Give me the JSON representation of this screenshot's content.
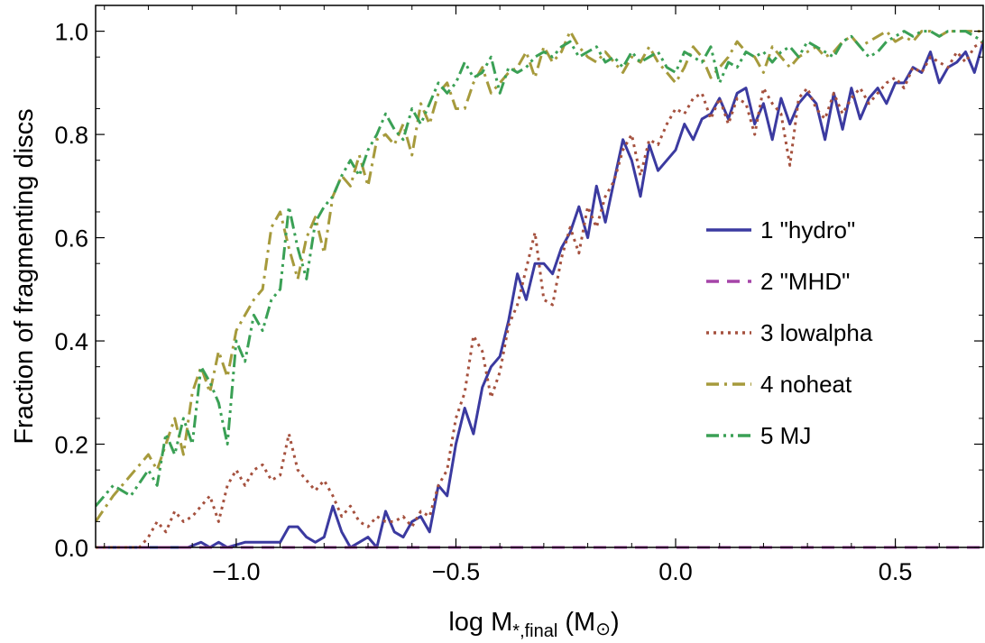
{
  "chart_data": {
    "type": "line",
    "title": "",
    "xlabel": "log M",
    "xlabel_sub": "*,final",
    "xlabel_unit_open": " (M",
    "xlabel_unit_symbol": "⊙",
    "xlabel_unit_close": ")",
    "ylabel": "Fraction of fragmenting discs",
    "xlim": [
      -1.32,
      0.7
    ],
    "ylim": [
      0.0,
      1.05
    ],
    "xticks": [
      -1.0,
      -0.5,
      0.0,
      0.5
    ],
    "xtick_labels": [
      "−1.0",
      "−0.5",
      "0.0",
      "0.5"
    ],
    "yticks": [
      0.0,
      0.2,
      0.4,
      0.6,
      0.8,
      1.0
    ],
    "ytick_labels": [
      "0.0",
      "0.2",
      "0.4",
      "0.6",
      "0.8",
      "1.0"
    ],
    "grid": false,
    "legend_position": "right",
    "series": [
      {
        "name": "1 \"hydro\"",
        "color": "#3b3aa0",
        "style": "solid",
        "x": [
          -1.32,
          -1.2,
          -1.15,
          -1.11,
          -1.08,
          -1.06,
          -1.04,
          -1.02,
          -0.98,
          -0.94,
          -0.9,
          -0.88,
          -0.86,
          -0.84,
          -0.82,
          -0.8,
          -0.78,
          -0.76,
          -0.74,
          -0.72,
          -0.7,
          -0.68,
          -0.66,
          -0.64,
          -0.62,
          -0.6,
          -0.58,
          -0.56,
          -0.54,
          -0.52,
          -0.5,
          -0.48,
          -0.46,
          -0.44,
          -0.42,
          -0.4,
          -0.38,
          -0.36,
          -0.34,
          -0.32,
          -0.3,
          -0.28,
          -0.26,
          -0.24,
          -0.22,
          -0.2,
          -0.18,
          -0.16,
          -0.14,
          -0.12,
          -0.1,
          -0.08,
          -0.06,
          -0.04,
          -0.02,
          0.0,
          0.02,
          0.04,
          0.06,
          0.08,
          0.1,
          0.12,
          0.14,
          0.16,
          0.18,
          0.2,
          0.22,
          0.24,
          0.26,
          0.28,
          0.3,
          0.32,
          0.34,
          0.36,
          0.38,
          0.4,
          0.42,
          0.44,
          0.46,
          0.48,
          0.5,
          0.52,
          0.54,
          0.56,
          0.58,
          0.6,
          0.62,
          0.64,
          0.66,
          0.68,
          0.7
        ],
        "y": [
          0.0,
          0.0,
          0.0,
          0.0,
          0.01,
          0.0,
          0.01,
          0.0,
          0.01,
          0.01,
          0.01,
          0.04,
          0.04,
          0.02,
          0.01,
          0.02,
          0.08,
          0.03,
          0.0,
          0.01,
          0.02,
          0.0,
          0.07,
          0.03,
          0.02,
          0.05,
          0.06,
          0.03,
          0.12,
          0.1,
          0.2,
          0.27,
          0.22,
          0.31,
          0.35,
          0.37,
          0.44,
          0.53,
          0.48,
          0.55,
          0.55,
          0.53,
          0.58,
          0.61,
          0.66,
          0.6,
          0.7,
          0.63,
          0.71,
          0.79,
          0.75,
          0.68,
          0.78,
          0.73,
          0.75,
          0.77,
          0.82,
          0.79,
          0.83,
          0.84,
          0.87,
          0.83,
          0.88,
          0.89,
          0.82,
          0.86,
          0.79,
          0.87,
          0.82,
          0.86,
          0.88,
          0.86,
          0.79,
          0.88,
          0.81,
          0.89,
          0.83,
          0.87,
          0.89,
          0.86,
          0.9,
          0.9,
          0.93,
          0.92,
          0.96,
          0.9,
          0.93,
          0.94,
          0.96,
          0.92,
          0.98
        ]
      },
      {
        "name": "2 \"MHD\"",
        "color": "#a544a8",
        "style": "dashed",
        "x": [
          -1.32,
          0.7
        ],
        "y": [
          0.0,
          0.0
        ]
      },
      {
        "name": "3 lowalpha",
        "color": "#a5513e",
        "style": "dotted",
        "x": [
          -1.32,
          -1.26,
          -1.22,
          -1.2,
          -1.18,
          -1.16,
          -1.14,
          -1.12,
          -1.1,
          -1.08,
          -1.06,
          -1.04,
          -1.02,
          -1.0,
          -0.98,
          -0.96,
          -0.94,
          -0.92,
          -0.9,
          -0.88,
          -0.86,
          -0.84,
          -0.82,
          -0.8,
          -0.78,
          -0.76,
          -0.74,
          -0.72,
          -0.7,
          -0.68,
          -0.66,
          -0.64,
          -0.62,
          -0.6,
          -0.58,
          -0.56,
          -0.54,
          -0.52,
          -0.5,
          -0.48,
          -0.46,
          -0.44,
          -0.42,
          -0.4,
          -0.38,
          -0.36,
          -0.34,
          -0.32,
          -0.3,
          -0.28,
          -0.26,
          -0.24,
          -0.22,
          -0.2,
          -0.18,
          -0.16,
          -0.14,
          -0.12,
          -0.1,
          -0.08,
          -0.06,
          -0.04,
          -0.02,
          0.0,
          0.02,
          0.04,
          0.06,
          0.08,
          0.1,
          0.12,
          0.14,
          0.16,
          0.18,
          0.2,
          0.22,
          0.24,
          0.26,
          0.28,
          0.3,
          0.32,
          0.34,
          0.36,
          0.38,
          0.4,
          0.42,
          0.44,
          0.46,
          0.48,
          0.5,
          0.52,
          0.54,
          0.56,
          0.58,
          0.6,
          0.62,
          0.64,
          0.66,
          0.68,
          0.7
        ],
        "y": [
          0.0,
          0.0,
          0.0,
          0.02,
          0.05,
          0.03,
          0.07,
          0.05,
          0.06,
          0.08,
          0.1,
          0.05,
          0.12,
          0.15,
          0.12,
          0.15,
          0.16,
          0.13,
          0.14,
          0.22,
          0.15,
          0.13,
          0.11,
          0.13,
          0.1,
          0.06,
          0.08,
          0.05,
          0.04,
          0.06,
          0.05,
          0.05,
          0.06,
          0.04,
          0.07,
          0.06,
          0.12,
          0.15,
          0.25,
          0.3,
          0.41,
          0.38,
          0.29,
          0.34,
          0.43,
          0.47,
          0.54,
          0.61,
          0.48,
          0.47,
          0.56,
          0.62,
          0.57,
          0.66,
          0.62,
          0.68,
          0.71,
          0.77,
          0.8,
          0.72,
          0.79,
          0.78,
          0.82,
          0.85,
          0.84,
          0.87,
          0.88,
          0.83,
          0.87,
          0.82,
          0.87,
          0.86,
          0.8,
          0.89,
          0.86,
          0.84,
          0.74,
          0.87,
          0.89,
          0.85,
          0.83,
          0.88,
          0.84,
          0.87,
          0.89,
          0.86,
          0.88,
          0.9,
          0.91,
          0.89,
          0.93,
          0.92,
          0.95,
          0.94,
          0.93,
          0.96,
          0.94,
          0.97,
          0.98
        ]
      },
      {
        "name": "4 noheat",
        "color": "#a69a3c",
        "style": "dashdot",
        "x": [
          -1.32,
          -1.28,
          -1.24,
          -1.2,
          -1.18,
          -1.16,
          -1.14,
          -1.12,
          -1.1,
          -1.08,
          -1.06,
          -1.04,
          -1.02,
          -1.0,
          -0.98,
          -0.96,
          -0.94,
          -0.92,
          -0.9,
          -0.88,
          -0.86,
          -0.84,
          -0.82,
          -0.8,
          -0.78,
          -0.76,
          -0.74,
          -0.72,
          -0.7,
          -0.68,
          -0.66,
          -0.64,
          -0.62,
          -0.6,
          -0.58,
          -0.56,
          -0.54,
          -0.52,
          -0.5,
          -0.48,
          -0.46,
          -0.44,
          -0.42,
          -0.4,
          -0.38,
          -0.36,
          -0.34,
          -0.32,
          -0.3,
          -0.28,
          -0.26,
          -0.24,
          -0.22,
          -0.2,
          -0.18,
          -0.16,
          -0.14,
          -0.12,
          -0.1,
          -0.08,
          -0.06,
          -0.04,
          -0.02,
          0.0,
          0.02,
          0.04,
          0.06,
          0.08,
          0.1,
          0.12,
          0.14,
          0.16,
          0.18,
          0.2,
          0.22,
          0.24,
          0.26,
          0.28,
          0.3,
          0.32,
          0.34,
          0.36,
          0.38,
          0.4,
          0.42,
          0.44,
          0.46,
          0.48,
          0.5,
          0.52,
          0.54,
          0.56,
          0.58,
          0.6,
          0.62,
          0.64,
          0.66,
          0.68,
          0.7
        ],
        "y": [
          0.05,
          0.1,
          0.14,
          0.18,
          0.15,
          0.2,
          0.25,
          0.18,
          0.3,
          0.35,
          0.3,
          0.38,
          0.33,
          0.42,
          0.45,
          0.48,
          0.5,
          0.62,
          0.65,
          0.58,
          0.52,
          0.6,
          0.64,
          0.57,
          0.68,
          0.72,
          0.7,
          0.76,
          0.7,
          0.79,
          0.8,
          0.78,
          0.82,
          0.76,
          0.86,
          0.82,
          0.88,
          0.9,
          0.85,
          0.85,
          0.9,
          0.93,
          0.88,
          0.9,
          0.92,
          0.93,
          0.96,
          0.91,
          0.97,
          0.94,
          0.96,
          1.0,
          0.97,
          0.95,
          0.94,
          0.96,
          0.94,
          0.92,
          0.95,
          0.94,
          0.97,
          0.94,
          0.92,
          0.9,
          0.93,
          0.97,
          0.95,
          0.91,
          0.93,
          0.95,
          0.98,
          0.96,
          0.95,
          0.92,
          0.97,
          0.95,
          0.93,
          0.95,
          0.96,
          0.97,
          0.95,
          0.96,
          0.98,
          0.99,
          0.97,
          0.98,
          0.99,
          1.0,
          0.98,
          0.99,
          0.98,
          1.0,
          1.0,
          0.99,
          1.0,
          1.0,
          1.0,
          1.0,
          1.0
        ]
      },
      {
        "name": "5 MJ",
        "color": "#3aa055",
        "style": "dashdotdot",
        "x": [
          -1.32,
          -1.28,
          -1.24,
          -1.2,
          -1.18,
          -1.16,
          -1.14,
          -1.12,
          -1.1,
          -1.08,
          -1.06,
          -1.04,
          -1.02,
          -1.0,
          -0.98,
          -0.96,
          -0.94,
          -0.92,
          -0.9,
          -0.88,
          -0.86,
          -0.84,
          -0.82,
          -0.8,
          -0.78,
          -0.76,
          -0.74,
          -0.72,
          -0.7,
          -0.68,
          -0.66,
          -0.64,
          -0.62,
          -0.6,
          -0.58,
          -0.56,
          -0.54,
          -0.52,
          -0.5,
          -0.48,
          -0.46,
          -0.44,
          -0.42,
          -0.4,
          -0.38,
          -0.36,
          -0.34,
          -0.32,
          -0.3,
          -0.28,
          -0.26,
          -0.24,
          -0.22,
          -0.2,
          -0.18,
          -0.16,
          -0.14,
          -0.12,
          -0.1,
          -0.08,
          -0.06,
          -0.04,
          -0.02,
          0.0,
          0.02,
          0.04,
          0.06,
          0.08,
          0.1,
          0.12,
          0.14,
          0.16,
          0.18,
          0.2,
          0.22,
          0.24,
          0.26,
          0.28,
          0.3,
          0.32,
          0.34,
          0.36,
          0.38,
          0.4,
          0.42,
          0.44,
          0.46,
          0.48,
          0.5,
          0.52,
          0.54,
          0.56,
          0.58,
          0.6,
          0.62,
          0.64,
          0.66,
          0.68,
          0.7
        ],
        "y": [
          0.08,
          0.12,
          0.1,
          0.15,
          0.12,
          0.22,
          0.18,
          0.25,
          0.2,
          0.35,
          0.32,
          0.28,
          0.2,
          0.4,
          0.36,
          0.45,
          0.42,
          0.48,
          0.5,
          0.66,
          0.58,
          0.52,
          0.63,
          0.66,
          0.68,
          0.72,
          0.75,
          0.72,
          0.77,
          0.8,
          0.84,
          0.81,
          0.79,
          0.85,
          0.82,
          0.86,
          0.9,
          0.88,
          0.9,
          0.94,
          0.91,
          0.92,
          0.95,
          0.88,
          0.93,
          0.92,
          0.93,
          0.95,
          0.96,
          0.95,
          0.97,
          0.98,
          0.95,
          0.96,
          0.97,
          0.94,
          0.95,
          0.93,
          0.96,
          0.94,
          0.95,
          0.96,
          0.93,
          0.92,
          0.96,
          0.95,
          0.94,
          0.97,
          0.9,
          0.94,
          0.93,
          0.96,
          0.95,
          0.96,
          0.94,
          0.96,
          0.97,
          0.95,
          0.98,
          0.97,
          0.96,
          0.95,
          0.98,
          0.99,
          0.97,
          0.95,
          0.96,
          0.98,
          0.99,
          1.0,
          0.99,
          1.0,
          1.0,
          0.99,
          1.0,
          1.0,
          1.0,
          0.99,
          0.98
        ]
      }
    ]
  }
}
